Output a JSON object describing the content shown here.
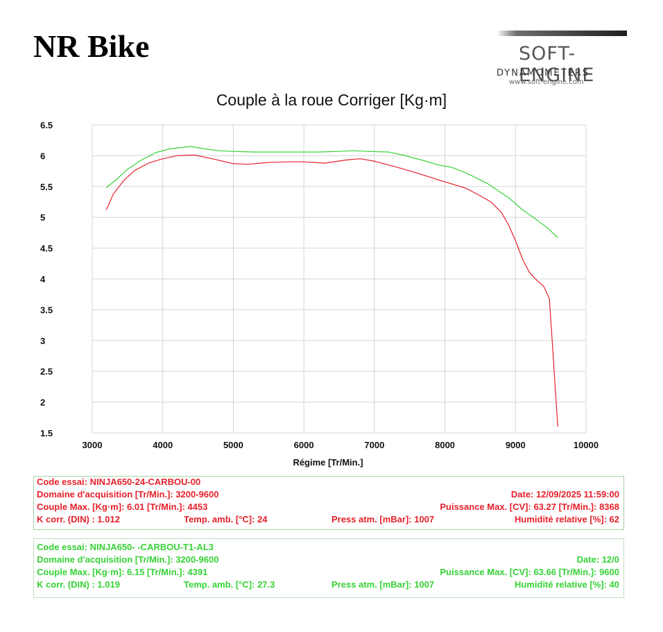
{
  "header": {
    "brand": "NR Bike",
    "logo_word": "SOFT-ENGINE",
    "logo_sub": "DYNAMOMETERS",
    "logo_url": "www.soft-engine.com"
  },
  "colors": {
    "series_red": "#e6202a",
    "series_green": "#36d236",
    "grid": "#d6d6d6"
  },
  "chart_data": {
    "type": "line",
    "title": "Couple à la roue Corriger [Kg·m]",
    "xlabel": "Régime [Tr/Min.]",
    "ylabel": "",
    "xlim": [
      3000,
      10000
    ],
    "ylim": [
      1.5,
      6.5
    ],
    "xticks": [
      3000,
      4000,
      5000,
      6000,
      7000,
      8000,
      9000,
      10000
    ],
    "yticks": [
      1.5,
      2,
      2.5,
      3,
      3.5,
      4,
      4.5,
      5,
      5.5,
      6,
      6.5
    ],
    "grid": true,
    "series": [
      {
        "color": "#e6202a",
        "x": [
          3200,
          3300,
          3450,
          3600,
          3800,
          4000,
          4200,
          4450,
          4700,
          5000,
          5200,
          5500,
          5800,
          6000,
          6300,
          6600,
          6800,
          7000,
          7300,
          7600,
          7900,
          8100,
          8300,
          8500,
          8650,
          8800,
          8900,
          9000,
          9100,
          9200,
          9300,
          9400,
          9480,
          9520,
          9560,
          9600
        ],
        "y": [
          5.12,
          5.38,
          5.6,
          5.76,
          5.88,
          5.95,
          6.0,
          6.01,
          5.95,
          5.87,
          5.86,
          5.89,
          5.9,
          5.9,
          5.88,
          5.93,
          5.95,
          5.91,
          5.82,
          5.72,
          5.61,
          5.54,
          5.47,
          5.35,
          5.25,
          5.08,
          4.88,
          4.62,
          4.32,
          4.1,
          3.98,
          3.88,
          3.68,
          3.0,
          2.3,
          1.6
        ]
      },
      {
        "color": "#36d236",
        "x": [
          3200,
          3350,
          3500,
          3700,
          3900,
          4100,
          4391,
          4600,
          4800,
          5000,
          5300,
          5600,
          5900,
          6200,
          6500,
          6700,
          6900,
          7200,
          7400,
          7700,
          7900,
          8100,
          8300,
          8600,
          8900,
          9100,
          9300,
          9450,
          9600
        ],
        "y": [
          5.48,
          5.62,
          5.78,
          5.93,
          6.05,
          6.11,
          6.15,
          6.11,
          6.08,
          6.07,
          6.06,
          6.06,
          6.06,
          6.06,
          6.07,
          6.08,
          6.07,
          6.06,
          6.01,
          5.92,
          5.85,
          5.81,
          5.72,
          5.55,
          5.32,
          5.12,
          4.96,
          4.83,
          4.67
        ]
      }
    ]
  },
  "info_red": {
    "rows": [
      {
        "left": "Code essai: NINJA650-24-CARBOU-00"
      },
      {
        "left": "Domaine d'acquisition [Tr/Min.]: 3200-9600",
        "right": "Date: 12/09/2025   11:59:00"
      },
      {
        "left": "Couple Max. [Kg·m]: 6.01   [Tr/Min.]: 4453",
        "right": "Puissance Max. [CV]: 63.27   [Tr/Min.]: 8368"
      },
      {
        "left": "K corr. (DIN) : 1.012",
        "mid1": "Temp. amb. [°C]: 24",
        "mid2": "Press atm. [mBar]: 1007",
        "right": "Humidité relative [%]: 62"
      }
    ]
  },
  "info_green": {
    "rows": [
      {
        "left": "Code essai: NINJA650-      -CARBOU-T1-AL3"
      },
      {
        "left": "Domaine d'acquisition [Tr/Min.]: 3200-9600",
        "right": "Date: 12/0"
      },
      {
        "left": "Couple Max. [Kg·m]: 6.15   [Tr/Min.]: 4391",
        "right": "Puissance Max. [CV]: 63.66   [Tr/Min.]: 9600"
      },
      {
        "left": "K corr. (DIN) : 1.019",
        "mid1": "Temp. amb. [°C]: 27.3",
        "mid2": "Press atm. [mBar]: 1007",
        "right": "Humidité relative [%]: 40"
      }
    ]
  }
}
